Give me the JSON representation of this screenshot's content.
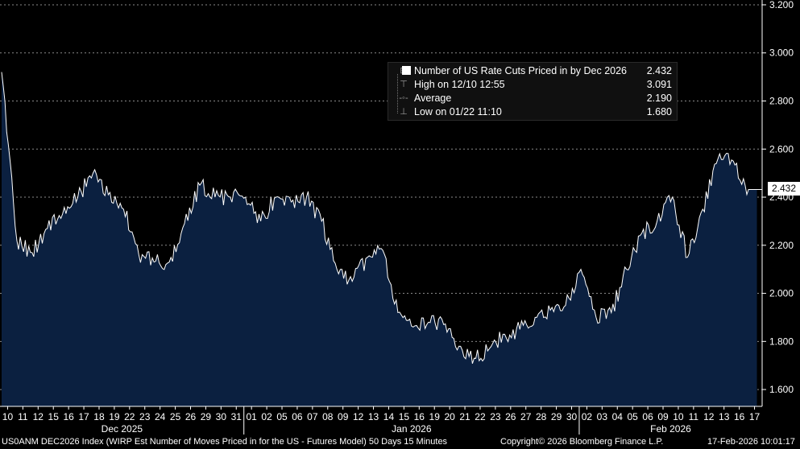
{
  "chart_data": {
    "type": "area",
    "series": [
      {
        "name": "Number of US Rate Cuts Priced in by Dec 2026",
        "last": "2.432",
        "x": [
          "12/10",
          "12/11",
          "12/12",
          "12/15",
          "12/16",
          "12/17",
          "12/18",
          "12/19",
          "12/22",
          "12/23",
          "12/24",
          "12/25",
          "12/26",
          "12/29",
          "12/30",
          "12/31",
          "01/01",
          "01/02",
          "01/05",
          "01/06",
          "01/07",
          "01/08",
          "01/09",
          "01/12",
          "01/13",
          "01/14",
          "01/15",
          "01/16",
          "01/19",
          "01/20",
          "01/21",
          "01/22",
          "01/23",
          "01/26",
          "01/27",
          "01/28",
          "01/29",
          "01/30",
          "02/02",
          "02/03",
          "02/04",
          "02/05",
          "02/06",
          "02/09",
          "02/10",
          "02/11",
          "02/12",
          "02/13",
          "02/16",
          "02/17"
        ],
        "values": [
          2.92,
          2.22,
          2.17,
          2.27,
          2.33,
          2.4,
          2.5,
          2.41,
          2.35,
          2.16,
          2.13,
          2.13,
          2.29,
          2.45,
          2.4,
          2.4,
          2.4,
          2.3,
          2.4,
          2.38,
          2.4,
          2.3,
          2.1,
          2.05,
          2.15,
          2.18,
          1.92,
          1.86,
          1.88,
          1.87,
          1.78,
          1.73,
          1.77,
          1.83,
          1.85,
          1.9,
          1.93,
          1.95,
          2.1,
          1.9,
          1.92,
          2.1,
          2.25,
          2.3,
          2.4,
          2.15,
          2.35,
          2.56,
          2.55,
          2.432
        ]
      }
    ],
    "stats": [
      {
        "label": "Number of US Rate Cuts Priced in by Dec 2026",
        "value": "2.432"
      },
      {
        "label": "High on 12/10 12:55",
        "value": "3.091"
      },
      {
        "label": "Average",
        "value": "2.190"
      },
      {
        "label": "Low on 01/22 11:10",
        "value": "1.680"
      }
    ],
    "ylim": [
      1.53,
      3.22
    ],
    "yticks": [
      "1.600",
      "1.800",
      "2.000",
      "2.200",
      "2.400",
      "2.600",
      "2.800",
      "3.000",
      "3.200"
    ],
    "xtick_labels": [
      "10",
      "11",
      "12",
      "15",
      "16",
      "17",
      "18",
      "19",
      "22",
      "23",
      "24",
      "25",
      "26",
      "29",
      "30",
      "31",
      "01",
      "02",
      "05",
      "06",
      "07",
      "08",
      "09",
      "12",
      "13",
      "14",
      "15",
      "16",
      "19",
      "20",
      "21",
      "22",
      "23",
      "26",
      "27",
      "28",
      "29",
      "30",
      "02",
      "03",
      "04",
      "05",
      "06",
      "09",
      "10",
      "11",
      "12",
      "13",
      "16",
      "17"
    ],
    "months": [
      {
        "label": "Dec 2025",
        "start": 0,
        "end": 15
      },
      {
        "label": "Jan 2026",
        "start": 16,
        "end": 37
      },
      {
        "label": "Feb 2026",
        "start": 38,
        "end": 49
      }
    ],
    "grid": true,
    "legend": "top-right"
  },
  "footer": {
    "index_desc": "US0ANM DEC2026 Index (WIRP Est Number of Moves Priced in for the US - Futures Model) 50 Days 15 Minutes",
    "copyright": "Copyright© 2026 Bloomberg Finance L.P.",
    "timestamp": "17-Feb-2026 10:01:17"
  },
  "colors": {
    "area": "#0b2040",
    "line": "#ffffff",
    "grid": "#8a8a8a",
    "background": "#000000"
  }
}
